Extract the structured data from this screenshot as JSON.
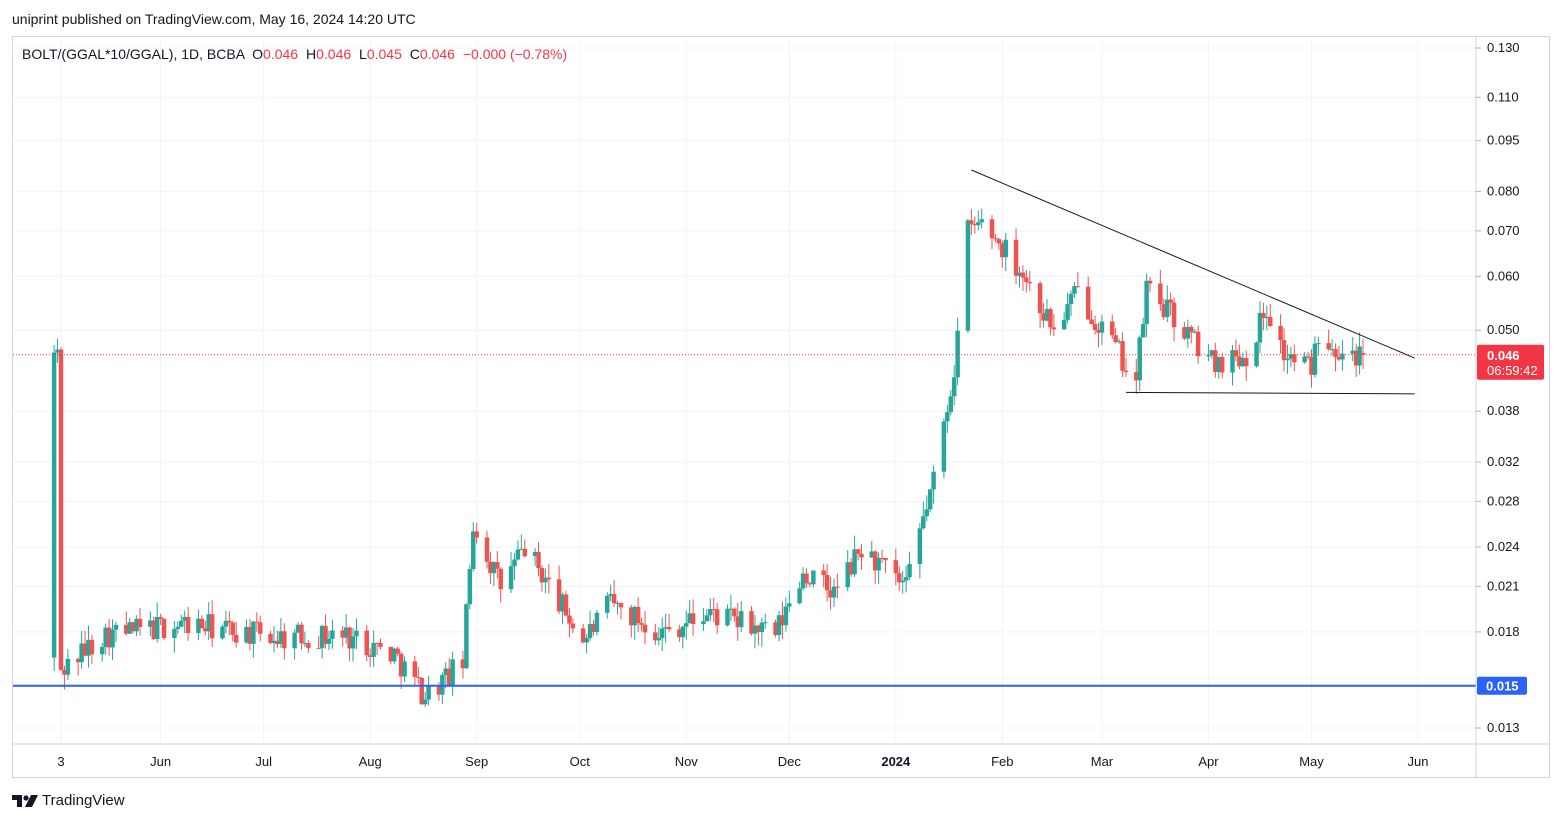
{
  "header": {
    "published_text": "uniprint published on TradingView.com, May 16, 2024 14:20 UTC"
  },
  "legend": {
    "symbol": "BOLT/(GGAL*10/GGAL), 1D, BCBA",
    "open_label": "O",
    "open_value": "0.046",
    "high_label": "H",
    "high_value": "0.046",
    "low_label": "L",
    "low_value": "0.045",
    "close_label": "C",
    "close_value": "0.046",
    "change": "−0.000 (−0.78%)"
  },
  "footer": {
    "brand": "TradingView"
  },
  "colors": {
    "up": "#26a69a",
    "down": "#ef5350",
    "support_line": "#2962ff",
    "price_tag": "#f23645",
    "grid": "#f0f3fa",
    "trendline": "#131722"
  },
  "chart_data": {
    "type": "candlestick",
    "scale": "log",
    "y_ticks": [
      "0.130",
      "0.110",
      "0.095",
      "0.080",
      "0.070",
      "0.060",
      "0.050",
      "0.038",
      "0.032",
      "0.028",
      "0.024",
      "0.021",
      "0.018",
      "0.013"
    ],
    "x_ticks": [
      "3",
      "Jun",
      "Jul",
      "Aug",
      "Sep",
      "Oct",
      "Nov",
      "Dec",
      "2024",
      "Feb",
      "Mar",
      "Apr",
      "May",
      "Jun"
    ],
    "last_price": "0.046",
    "countdown": "06:59:42",
    "support_level": "0.015",
    "trendlines": [
      {
        "name": "descending-resistance",
        "from": {
          "date": "2024-01-23",
          "price": 0.086
        },
        "to": {
          "date": "2024-05-31",
          "price": 0.0455
        }
      },
      {
        "name": "horizontal-support",
        "from": {
          "date": "2024-03-08",
          "price": 0.0405
        },
        "to": {
          "date": "2024-05-31",
          "price": 0.0403
        }
      }
    ],
    "anchors": [
      {
        "date": "2023-05-03",
        "close": 0.0158
      },
      {
        "date": "2023-05-15",
        "close": 0.0178
      },
      {
        "date": "2023-06-08",
        "close": 0.0185
      },
      {
        "date": "2023-07-05",
        "close": 0.0177
      },
      {
        "date": "2023-07-25",
        "close": 0.0178
      },
      {
        "date": "2023-08-08",
        "close": 0.0167
      },
      {
        "date": "2023-08-17",
        "close": 0.0145
      },
      {
        "date": "2023-08-28",
        "close": 0.0162
      },
      {
        "date": "2023-08-31",
        "close": 0.026
      },
      {
        "date": "2023-09-08",
        "close": 0.021
      },
      {
        "date": "2023-09-15",
        "close": 0.024
      },
      {
        "date": "2023-10-02",
        "close": 0.0175
      },
      {
        "date": "2023-10-10",
        "close": 0.0198
      },
      {
        "date": "2023-10-25",
        "close": 0.018
      },
      {
        "date": "2023-11-08",
        "close": 0.0192
      },
      {
        "date": "2023-11-27",
        "close": 0.0178
      },
      {
        "date": "2023-12-05",
        "close": 0.022
      },
      {
        "date": "2023-12-14",
        "close": 0.0205
      },
      {
        "date": "2023-12-22",
        "close": 0.0238
      },
      {
        "date": "2024-01-04",
        "close": 0.0208
      },
      {
        "date": "2024-01-09",
        "close": 0.0265
      },
      {
        "date": "2024-01-12",
        "close": 0.03
      },
      {
        "date": "2024-01-18",
        "close": 0.044
      },
      {
        "date": "2024-01-22",
        "close": 0.07
      },
      {
        "date": "2024-01-26",
        "close": 0.072
      },
      {
        "date": "2024-02-06",
        "close": 0.062
      },
      {
        "date": "2024-02-16",
        "close": 0.05
      },
      {
        "date": "2024-02-23",
        "close": 0.057
      },
      {
        "date": "2024-03-05",
        "close": 0.047
      },
      {
        "date": "2024-03-11",
        "close": 0.042
      },
      {
        "date": "2024-03-14",
        "close": 0.058
      },
      {
        "date": "2024-03-22",
        "close": 0.052
      },
      {
        "date": "2024-04-02",
        "close": 0.045
      },
      {
        "date": "2024-04-12",
        "close": 0.046
      },
      {
        "date": "2024-04-18",
        "close": 0.054
      },
      {
        "date": "2024-04-23",
        "close": 0.046
      },
      {
        "date": "2024-05-01",
        "close": 0.044
      },
      {
        "date": "2024-05-03",
        "close": 0.05
      },
      {
        "date": "2024-05-10",
        "close": 0.0468
      },
      {
        "date": "2024-05-16",
        "close": 0.046
      }
    ]
  }
}
